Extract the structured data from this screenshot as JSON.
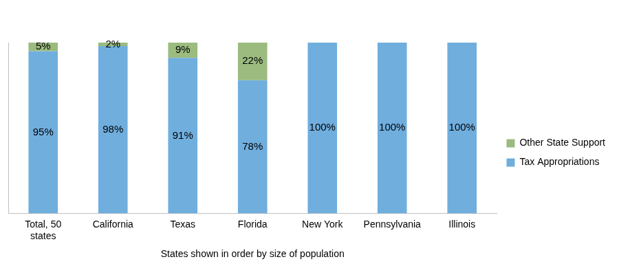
{
  "chart_data": {
    "type": "bar",
    "x_label": "States shown in order by size of population",
    "categories": [
      "Total, 50 states",
      "California",
      "Texas",
      "Florida",
      "New York",
      "Pennsylvania",
      "Illinois"
    ],
    "series": [
      {
        "name": "Tax Appropriations",
        "color": "#70aede",
        "values": [
          95,
          98,
          91,
          78,
          100,
          100,
          100
        ],
        "value_labels": [
          "95%",
          "98%",
          "91%",
          "78%",
          "100%",
          "100%",
          "100%"
        ]
      },
      {
        "name": "Other State Support",
        "color": "#9bbb7f",
        "values": [
          5,
          2,
          9,
          22,
          null,
          null,
          null
        ],
        "value_labels": [
          "5%",
          "2%",
          "9%",
          "22%",
          null,
          null,
          null
        ]
      }
    ],
    "ylim": [
      0,
      100
    ],
    "stacked": true,
    "data_labels": true,
    "legend": "right",
    "grid": false,
    "tick_labels": "x"
  }
}
